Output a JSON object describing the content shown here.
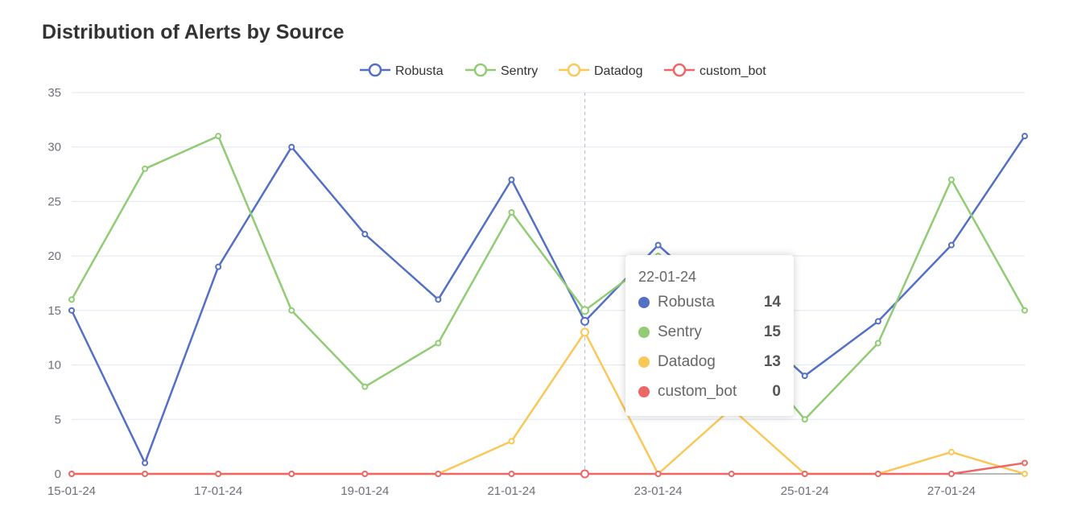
{
  "chart_data": {
    "type": "line",
    "title": "Distribution of Alerts by Source",
    "x": [
      "15-01-24",
      "16-01-24",
      "17-01-24",
      "18-01-24",
      "19-01-24",
      "20-01-24",
      "21-01-24",
      "22-01-24",
      "23-01-24",
      "24-01-24",
      "25-01-24",
      "26-01-24",
      "27-01-24",
      "28-01-24"
    ],
    "x_tick_labels": [
      "15-01-24",
      "17-01-24",
      "19-01-24",
      "21-01-24",
      "23-01-24",
      "25-01-24",
      "27-01-24"
    ],
    "ylim": [
      0,
      35
    ],
    "y_ticks": [
      "0",
      "5",
      "10",
      "15",
      "20",
      "25",
      "30",
      "35"
    ],
    "grid": true,
    "legend_position": "top-center",
    "series": [
      {
        "name": "Robusta",
        "color": "#5470c6",
        "values": [
          15,
          1,
          19,
          30,
          22,
          16,
          27,
          14,
          21,
          15,
          9,
          14,
          21,
          31
        ]
      },
      {
        "name": "Sentry",
        "color": "#91cc75",
        "values": [
          16,
          28,
          31,
          15,
          8,
          12,
          24,
          15,
          20,
          13,
          5,
          12,
          27,
          15
        ]
      },
      {
        "name": "Datadog",
        "color": "#fac858",
        "values": [
          0,
          0,
          0,
          0,
          0,
          0,
          3,
          13,
          0,
          6,
          0,
          0,
          2,
          0
        ]
      },
      {
        "name": "custom_bot",
        "color": "#ee6666",
        "values": [
          0,
          0,
          0,
          0,
          0,
          0,
          0,
          0,
          0,
          0,
          0,
          0,
          0,
          1
        ]
      }
    ],
    "highlight_index": 7
  },
  "tooltip": {
    "date": "22-01-24",
    "rows": [
      {
        "name": "Robusta",
        "value": "14",
        "color": "#5470c6"
      },
      {
        "name": "Sentry",
        "value": "15",
        "color": "#91cc75"
      },
      {
        "name": "Datadog",
        "value": "13",
        "color": "#fac858"
      },
      {
        "name": "custom_bot",
        "value": "0",
        "color": "#ee6666"
      }
    ]
  }
}
